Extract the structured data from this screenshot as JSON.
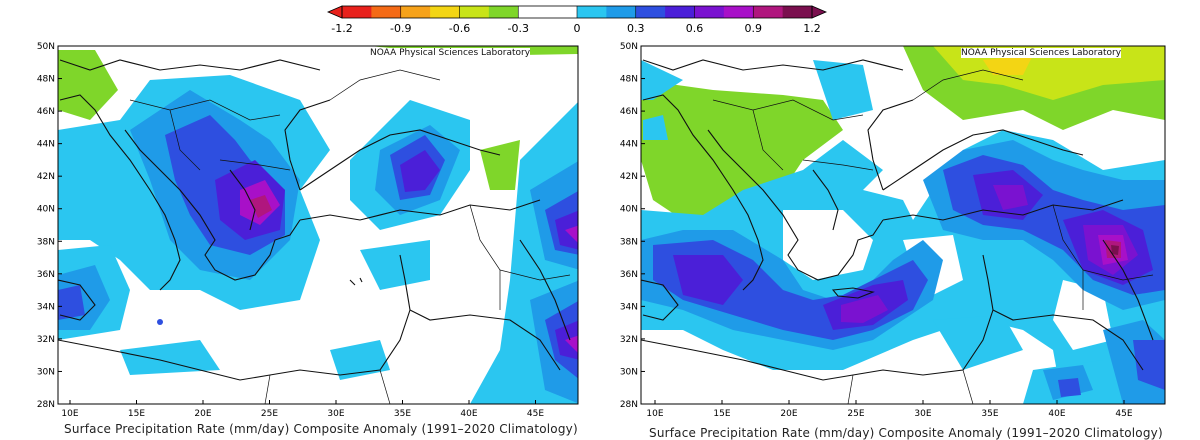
{
  "colorbar": {
    "ticks": [
      "-1.2",
      "-0.9",
      "-0.6",
      "-0.3",
      "0",
      "0.3",
      "0.6",
      "0.9",
      "1.2"
    ],
    "colors": [
      "#e8211c",
      "#f46a16",
      "#f6a21a",
      "#f3d514",
      "#c8e418",
      "#7fd62a",
      "#ffffff",
      "#ffffff",
      "#2bc6f0",
      "#1f9be8",
      "#2e4fe0",
      "#4b1fd8",
      "#7a12d0",
      "#a810c8",
      "#b0167e",
      "#7a0f4e"
    ]
  },
  "panels": [
    {
      "credit": "NOAA Physical Sciences Laboratory",
      "lat_labels": [
        "50N",
        "48N",
        "46N",
        "44N",
        "42N",
        "40N",
        "38N",
        "36N",
        "34N",
        "32N",
        "30N",
        "28N"
      ],
      "lon_labels": [
        "10E",
        "15E",
        "20E",
        "25E",
        "30E",
        "35E",
        "40E",
        "45E"
      ],
      "title": "Surface Precipitation Rate (mm/day) Composite Anomaly (1991–2020 Climatology)"
    },
    {
      "credit": "NOAA Physical Sciences Laboratory",
      "lat_labels": [
        "50N",
        "48N",
        "46N",
        "44N",
        "42N",
        "40N",
        "38N",
        "36N",
        "34N",
        "32N",
        "30N",
        "28N"
      ],
      "lon_labels": [
        "10E",
        "15E",
        "20E",
        "25E",
        "30E",
        "35E",
        "40E",
        "45E"
      ],
      "title": "Surface Precipitation Rate (mm/day) Composite Anomaly (1991–2020 Climatology)"
    }
  ]
}
